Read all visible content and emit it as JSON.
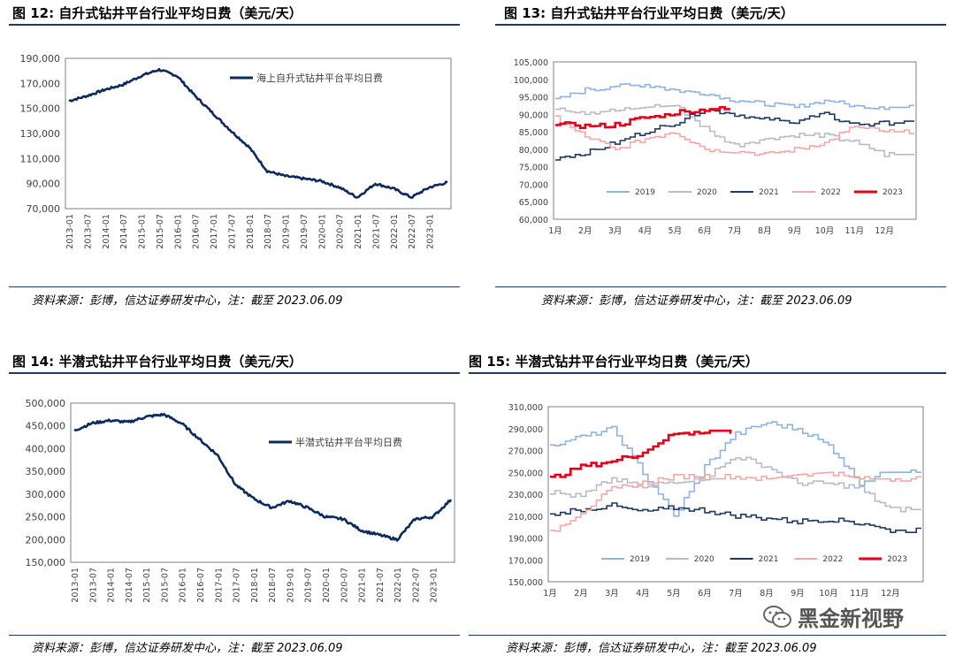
{
  "panels": [
    {
      "title": "图 12:  自升式钻井平台行业平均日费（美元/天）",
      "source": "资料来源：彭博，信达证券研发中心，注：截至 2023.06.09"
    },
    {
      "title": "图 13:  自升式钻井平台行业平均日费（美元/天）",
      "source": "资料来源：彭博，信达证券研发中心，注：截至 2023.06.09"
    },
    {
      "title": "图 14:  半潜式钻井平台行业平均日费（美元/天）",
      "source": "资料来源：彭博，信达证券研发中心，注：截至 2023.06.09"
    },
    {
      "title": "图 15:  半潜式钻井平台行业平均日费（美元/天）",
      "source": "资料来源：彭博，信达证券研发中心，注：截至 2023.06.09"
    }
  ],
  "watermark": {
    "text": "黑金新视野",
    "icon": "wechat-icon"
  },
  "chart_data": [
    {
      "type": "line",
      "ylim": [
        70000,
        190000
      ],
      "yticks": [
        "70,000",
        "90,000",
        "110,000",
        "130,000",
        "150,000",
        "170,000",
        "190,000"
      ],
      "x": [
        "2013-01",
        "2013-07",
        "2014-01",
        "2014-07",
        "2015-01",
        "2015-07",
        "2016-01",
        "2016-07",
        "2017-01",
        "2017-07",
        "2018-01",
        "2018-07",
        "2019-01",
        "2019-07",
        "2020-01",
        "2020-07",
        "2021-01",
        "2021-07",
        "2022-01",
        "2022-07",
        "2023-01",
        "2023-06"
      ],
      "xticks": [
        "2013-01",
        "2013-07",
        "2014-01",
        "2014-07",
        "2015-01",
        "2015-07",
        "2016-01",
        "2016-07",
        "2017-01",
        "2017-07",
        "2018-01",
        "2018-07",
        "2019-01",
        "2019-07",
        "2020-01",
        "2020-07",
        "2021-01",
        "2021-07",
        "2022-01",
        "2022-07",
        "2023-01"
      ],
      "legend_position": "top-right",
      "grid": false,
      "color": "#0d2a5c",
      "series": [
        {
          "name": "海上自升式钻井平台平均日费",
          "values": [
            156000,
            160000,
            165000,
            169000,
            176000,
            181000,
            176000,
            160000,
            146000,
            132000,
            119000,
            100000,
            96000,
            94000,
            92000,
            87000,
            79000,
            90000,
            86000,
            79000,
            87000,
            91000
          ]
        }
      ]
    },
    {
      "type": "line",
      "ylim": [
        60000,
        105000
      ],
      "yticks": [
        "60,000",
        "65,000",
        "70,000",
        "75,000",
        "80,000",
        "85,000",
        "90,000",
        "95,000",
        "100,000",
        "105,000"
      ],
      "xticks": [
        "1月",
        "2月",
        "3月",
        "4月",
        "5月",
        "6月",
        "7月",
        "8月",
        "9月",
        "10月",
        "11月",
        "12月"
      ],
      "legend_position": "bottom",
      "grid": false,
      "series": [
        {
          "name": "2019",
          "color": "#8eb4e3",
          "values": [
            94000,
            97000,
            98000,
            98500,
            97000,
            96000,
            94000,
            93000,
            92000,
            94000,
            92500,
            92000
          ]
        },
        {
          "name": "2020",
          "color": "#b8bcc8",
          "values": [
            92000,
            90500,
            91000,
            92000,
            92500,
            86000,
            81000,
            83000,
            84000,
            84000,
            82000,
            78500
          ]
        },
        {
          "name": "2021",
          "color": "#203864",
          "values": [
            77500,
            79000,
            82000,
            85000,
            87500,
            91500,
            90000,
            88500,
            88000,
            90000,
            87000,
            87500
          ]
        },
        {
          "name": "2022",
          "color": "#f4a7a7",
          "values": [
            89000,
            83500,
            80000,
            83000,
            85000,
            80000,
            79500,
            78500,
            80000,
            82000,
            86500,
            85000
          ]
        },
        {
          "name": "2023",
          "color": "#e6001a",
          "values": [
            87500,
            86500,
            87000,
            89000,
            90500,
            91500
          ]
        }
      ]
    },
    {
      "type": "line",
      "ylim": [
        150000,
        500000
      ],
      "yticks": [
        "150,000",
        "200,000",
        "250,000",
        "300,000",
        "350,000",
        "400,000",
        "450,000",
        "500,000"
      ],
      "x": [
        "2013-01",
        "2013-07",
        "2014-01",
        "2014-07",
        "2015-01",
        "2015-07",
        "2016-01",
        "2016-07",
        "2017-01",
        "2017-07",
        "2018-01",
        "2018-07",
        "2019-01",
        "2019-07",
        "2020-01",
        "2020-07",
        "2021-01",
        "2021-07",
        "2022-01",
        "2022-07",
        "2023-01",
        "2023-06"
      ],
      "xticks": [
        "2013-01",
        "2013-07",
        "2014-01",
        "2014-07",
        "2015-01",
        "2015-07",
        "2016-01",
        "2016-07",
        "2017-01",
        "2017-07",
        "2018-01",
        "2018-07",
        "2019-01",
        "2019-07",
        "2020-01",
        "2020-07",
        "2021-01",
        "2021-07",
        "2022-01",
        "2022-07",
        "2023-01"
      ],
      "legend_position": "top-right",
      "grid": false,
      "color": "#0d2a5c",
      "series": [
        {
          "name": "半潜式钻井平台平均日费",
          "values": [
            440000,
            456000,
            462000,
            458000,
            470000,
            475000,
            455000,
            420000,
            385000,
            320000,
            290000,
            270000,
            285000,
            270000,
            250000,
            245000,
            220000,
            210000,
            200000,
            245000,
            250000,
            288000
          ]
        }
      ]
    },
    {
      "type": "line",
      "ylim": [
        150000,
        310000
      ],
      "yticks": [
        "150,000",
        "170,000",
        "190,000",
        "210,000",
        "230,000",
        "250,000",
        "270,000",
        "290,000",
        "310,000"
      ],
      "xticks": [
        "1月",
        "2月",
        "3月",
        "4月",
        "5月",
        "6月",
        "7月",
        "8月",
        "9月",
        "10月",
        "11月",
        "12月"
      ],
      "legend_position": "bottom",
      "grid": false,
      "series": [
        {
          "name": "2019",
          "color": "#8eb4e3",
          "values": [
            275000,
            282000,
            290000,
            250000,
            210000,
            255000,
            285000,
            295000,
            290000,
            275000,
            240000,
            252000
          ]
        },
        {
          "name": "2020",
          "color": "#b8bcc8",
          "values": [
            232000,
            228000,
            245000,
            236000,
            242000,
            245000,
            265000,
            255000,
            240000,
            240000,
            235000,
            216000
          ]
        },
        {
          "name": "2021",
          "color": "#203864",
          "values": [
            212000,
            216000,
            220000,
            214000,
            218000,
            215000,
            210000,
            208000,
            205000,
            207000,
            204000,
            197000
          ]
        },
        {
          "name": "2022",
          "color": "#f4a7a7",
          "values": [
            195000,
            214000,
            235000,
            240000,
            246000,
            246000,
            246000,
            244000,
            248000,
            250000,
            244000,
            244000
          ]
        },
        {
          "name": "2023",
          "color": "#e6001a",
          "values": [
            244000,
            255000,
            260000,
            268000,
            285000,
            288000
          ]
        }
      ]
    }
  ]
}
